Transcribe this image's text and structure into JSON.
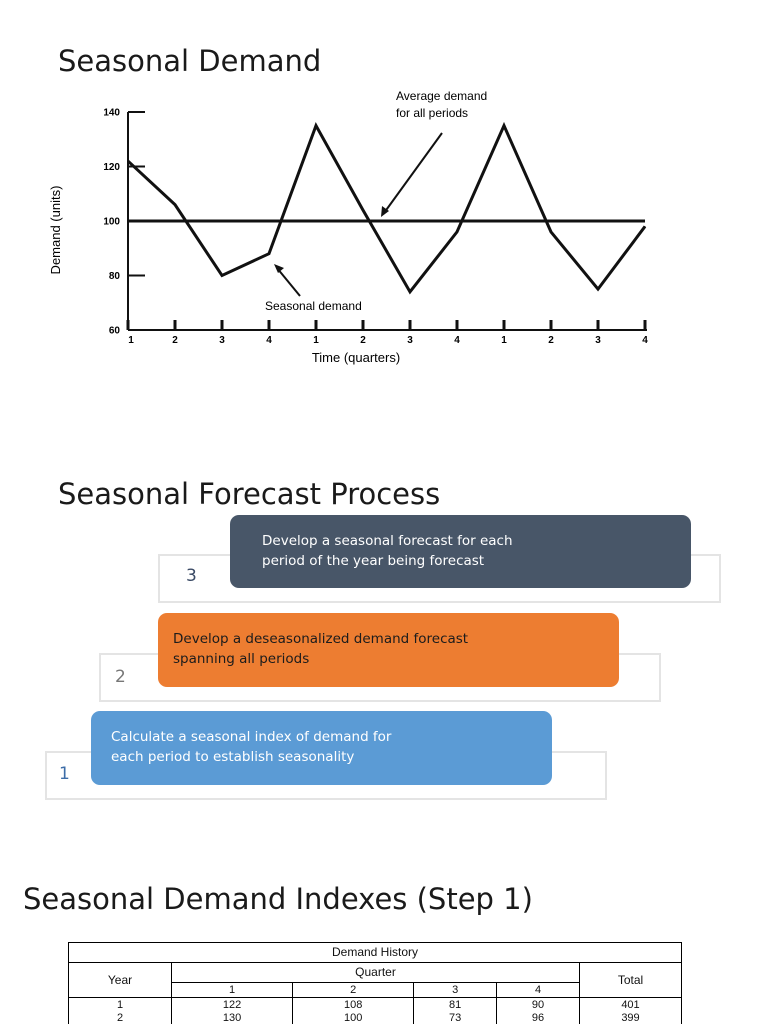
{
  "sections": {
    "chart_title": "Seasonal Demand",
    "process_title": "Seasonal Forecast Process",
    "index_title": "Seasonal Demand Indexes (Step 1)"
  },
  "chart_data": {
    "type": "line",
    "title": "",
    "xlabel": "Time (quarters)",
    "ylabel": "Demand (units)",
    "ylim": [
      60,
      140
    ],
    "yticks": [
      60,
      80,
      100,
      120,
      140
    ],
    "x_tick_labels": [
      "1",
      "2",
      "3",
      "4",
      "1",
      "2",
      "3",
      "4",
      "1",
      "2",
      "3",
      "4"
    ],
    "grid": false,
    "series": [
      {
        "values": [
          122,
          106,
          80,
          88,
          135,
          104,
          74,
          96,
          135,
          96,
          75,
          98
        ]
      },
      {
        "values": [
          100,
          100,
          100,
          100,
          100,
          100,
          100,
          100,
          100,
          100,
          100,
          100
        ]
      }
    ],
    "annotations": {
      "average": [
        "Average demand",
        "for all periods"
      ],
      "seasonal": "Seasonal demand"
    }
  },
  "process": {
    "steps": [
      {
        "number": "3",
        "lines": [
          "Develop a seasonal forecast for each",
          "period of the year being forecast"
        ]
      },
      {
        "number": "2",
        "lines": [
          "Develop a deseasonalized demand forecast",
          "spanning all periods"
        ]
      },
      {
        "number": "1",
        "lines": [
          "Calculate a seasonal index of demand for",
          "each period to establish seasonality"
        ]
      }
    ]
  },
  "table": {
    "caption": "Demand History",
    "year_label": "Year",
    "quarter_label": "Quarter",
    "total_label": "Total",
    "quarters": [
      "1",
      "2",
      "3",
      "4"
    ],
    "rows": [
      {
        "year": "1",
        "values": [
          "122",
          "108",
          "81",
          "90"
        ],
        "total": "401"
      },
      {
        "year": "2",
        "values": [
          "130",
          "100",
          "73",
          "96"
        ],
        "total": "399"
      }
    ]
  },
  "colors": {
    "step3": "#485668",
    "step2": "#ed7d31",
    "step1": "#5b9bd5"
  }
}
